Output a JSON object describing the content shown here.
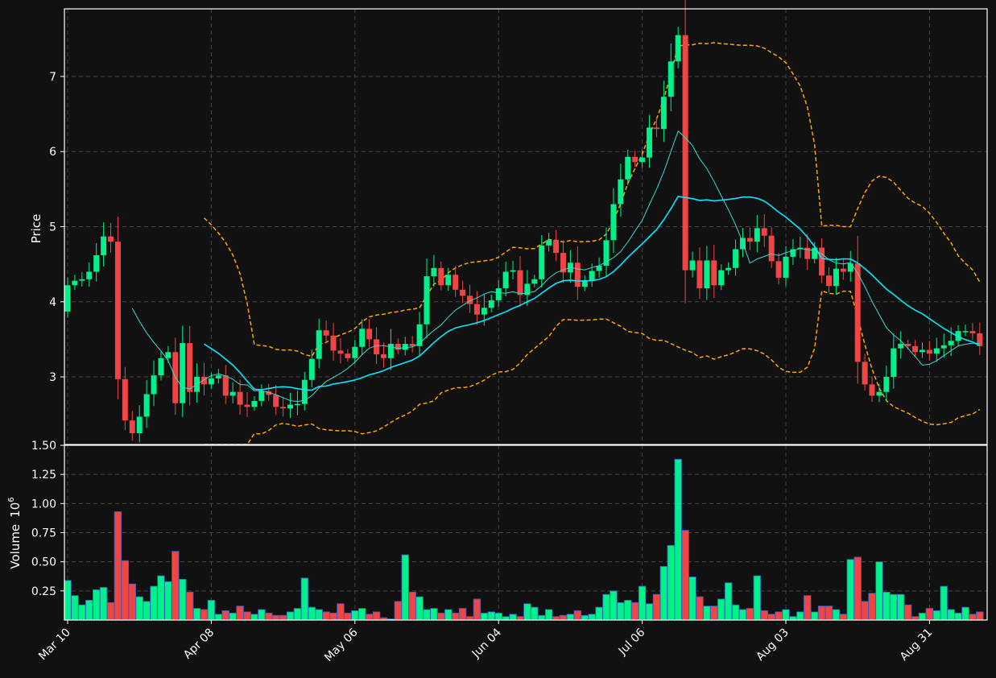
{
  "colors": {
    "background": "#111111",
    "up": "#00f08a",
    "down": "#f04545",
    "volume_edge": "#3060c0",
    "ma_fast": "#40d8d0",
    "ma_slow": "#00eaff",
    "bands": "#ffa500"
  },
  "chart_data": {
    "type": "candlestick",
    "x_tick_labels": [
      "Mar 10",
      "Apr 08",
      "May 06",
      "Jun 04",
      "Jul 06",
      "Aug 03",
      "Aug 31"
    ],
    "x_tick_indices": [
      0,
      20,
      40,
      60,
      80,
      100,
      120
    ],
    "price_panel": {
      "ylabel": "Price",
      "ylim": [
        2.1,
        7.9
      ],
      "yticks": [
        3,
        4,
        5,
        6,
        7
      ],
      "grid": true
    },
    "volume_panel": {
      "ylabel": "Volume",
      "ylabel_exponent": "6",
      "ylim": [
        0,
        1.5
      ],
      "yticks": [
        0.25,
        0.5,
        0.75,
        1.0,
        1.25,
        1.5
      ],
      "ytick_labels": [
        "0.25",
        "0.50",
        "0.75",
        "1.00",
        "1.25",
        "1.50"
      ],
      "grid": true
    },
    "close": [
      4.22,
      4.28,
      4.3,
      4.4,
      4.62,
      4.87,
      4.8,
      2.97,
      2.42,
      2.25,
      2.47,
      2.77,
      3.02,
      3.25,
      3.33,
      2.65,
      3.45,
      2.8,
      3.0,
      2.9,
      2.98,
      3.02,
      2.75,
      2.8,
      2.63,
      2.6,
      2.68,
      2.81,
      2.76,
      2.6,
      2.58,
      2.63,
      2.64,
      2.96,
      3.24,
      3.62,
      3.55,
      3.35,
      3.31,
      3.25,
      3.4,
      3.64,
      3.5,
      3.3,
      3.25,
      3.44,
      3.36,
      3.44,
      3.41,
      3.7,
      4.34,
      4.45,
      4.22,
      4.36,
      4.16,
      4.08,
      3.97,
      3.83,
      3.92,
      4.02,
      4.18,
      4.4,
      4.42,
      4.09,
      4.24,
      4.3,
      4.75,
      4.82,
      4.65,
      4.39,
      4.52,
      4.2,
      4.28,
      4.41,
      4.48,
      4.82,
      5.3,
      5.63,
      5.93,
      5.86,
      5.92,
      6.32,
      6.3,
      6.73,
      7.2,
      7.55,
      4.42,
      4.55,
      4.18,
      4.55,
      4.22,
      4.42,
      4.45,
      4.7,
      4.85,
      4.8,
      4.98,
      4.88,
      4.54,
      4.32,
      4.6,
      4.7,
      4.72,
      4.57,
      4.72,
      4.35,
      4.21,
      4.44,
      4.4,
      4.51,
      3.2,
      2.9,
      2.75,
      2.8,
      3.0,
      3.38,
      3.44,
      3.41,
      3.33,
      3.36,
      3.31,
      3.38,
      3.42,
      3.48,
      3.61,
      3.61,
      3.58,
      3.41
    ],
    "volume_millions": [
      0.34,
      0.21,
      0.13,
      0.17,
      0.26,
      0.28,
      0.15,
      0.93,
      0.51,
      0.31,
      0.2,
      0.16,
      0.29,
      0.38,
      0.33,
      0.59,
      0.35,
      0.24,
      0.1,
      0.09,
      0.17,
      0.05,
      0.08,
      0.06,
      0.12,
      0.07,
      0.05,
      0.09,
      0.06,
      0.04,
      0.04,
      0.07,
      0.1,
      0.36,
      0.11,
      0.09,
      0.07,
      0.06,
      0.14,
      0.06,
      0.08,
      0.1,
      0.05,
      0.07,
      0.02,
      0.01,
      0.16,
      0.56,
      0.24,
      0.2,
      0.09,
      0.1,
      0.06,
      0.09,
      0.06,
      0.1,
      0.03,
      0.18,
      0.06,
      0.07,
      0.06,
      0.03,
      0.05,
      0.03,
      0.14,
      0.11,
      0.04,
      0.09,
      0.03,
      0.04,
      0.05,
      0.08,
      0.04,
      0.05,
      0.11,
      0.22,
      0.25,
      0.15,
      0.17,
      0.15,
      0.29,
      0.14,
      0.22,
      0.46,
      0.64,
      1.38,
      0.77,
      0.37,
      0.2,
      0.12,
      0.12,
      0.18,
      0.32,
      0.13,
      0.09,
      0.1,
      0.38,
      0.08,
      0.05,
      0.07,
      0.09,
      0.03,
      0.07,
      0.21,
      0.07,
      0.12,
      0.12,
      0.09,
      0.05,
      0.52,
      0.54,
      0.16,
      0.23,
      0.5,
      0.24,
      0.22,
      0.22,
      0.13,
      0.03,
      0.06,
      0.1,
      0.08,
      0.29,
      0.09,
      0.06,
      0.11,
      0.05,
      0.07
    ]
  }
}
